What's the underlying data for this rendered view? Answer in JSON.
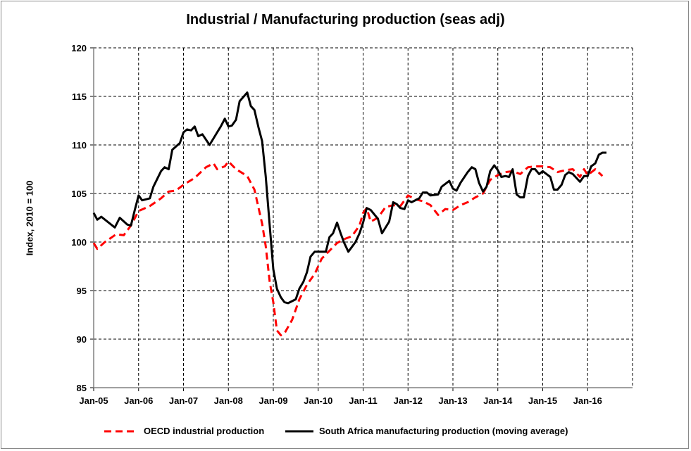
{
  "chart_data": {
    "type": "line",
    "title": "Industrial / Manufacturing production (seas adj)",
    "xlabel": "",
    "ylabel": "Index, 2010 = 100",
    "ylim": [
      85,
      120
    ],
    "xlim": [
      2005.0,
      2017.0
    ],
    "yticks": [
      85,
      90,
      95,
      100,
      105,
      110,
      115,
      120
    ],
    "xtick_labels": [
      "Jan-05",
      "Jan-06",
      "Jan-07",
      "Jan-08",
      "Jan-09",
      "Jan-10",
      "Jan-11",
      "Jan-12",
      "Jan-13",
      "Jan-14",
      "Jan-15",
      "Jan-16"
    ],
    "grid": true,
    "legend_position": "bottom",
    "series": [
      {
        "name": "OECD industrial production",
        "color": "#ff0000",
        "style": "dashed",
        "x": [
          2005.0,
          2005.08,
          2005.25,
          2005.5,
          2005.67,
          2005.83,
          2006.0,
          2006.25,
          2006.5,
          2006.67,
          2006.83,
          2007.0,
          2007.25,
          2007.5,
          2007.67,
          2007.75,
          2007.92,
          2008.0,
          2008.17,
          2008.42,
          2008.58,
          2008.75,
          2008.83,
          2008.92,
          2009.0,
          2009.08,
          2009.17,
          2009.25,
          2009.42,
          2009.58,
          2009.75,
          2009.92,
          2010.08,
          2010.25,
          2010.42,
          2010.58,
          2010.75,
          2010.92,
          2011.0,
          2011.08,
          2011.17,
          2011.33,
          2011.5,
          2011.67,
          2011.83,
          2012.0,
          2012.17,
          2012.33,
          2012.5,
          2012.67,
          2012.83,
          2013.0,
          2013.17,
          2013.33,
          2013.5,
          2013.67,
          2013.83,
          2014.0,
          2014.17,
          2014.33,
          2014.5,
          2014.67,
          2014.83,
          2015.0,
          2015.17,
          2015.33,
          2015.5,
          2015.67,
          2015.83,
          2015.92,
          2016.0,
          2016.17,
          2016.33
        ],
        "values": [
          99.9,
          99.3,
          100.0,
          100.8,
          100.7,
          101.7,
          103.2,
          103.7,
          104.5,
          105.2,
          105.3,
          105.9,
          106.6,
          107.7,
          108.1,
          107.5,
          107.8,
          108.3,
          107.5,
          106.8,
          105.4,
          101.9,
          99.6,
          95.9,
          93.8,
          90.9,
          90.4,
          90.6,
          92.0,
          94.1,
          95.6,
          96.7,
          98.3,
          99.1,
          99.9,
          100.3,
          100.6,
          101.7,
          103.0,
          103.5,
          102.1,
          102.5,
          103.6,
          103.8,
          103.7,
          104.8,
          104.4,
          104.2,
          103.8,
          102.8,
          103.4,
          103.3,
          103.8,
          104.1,
          104.6,
          105.0,
          106.4,
          106.9,
          107.2,
          107.3,
          107.0,
          107.7,
          107.8,
          107.8,
          107.7,
          107.2,
          107.4,
          107.5,
          106.7,
          107.5,
          106.9,
          107.5,
          106.8
        ]
      },
      {
        "name": "South Africa manufacturing production (moving average)",
        "color": "#000000",
        "style": "solid",
        "x": [
          2005.0,
          2005.08,
          2005.17,
          2005.47,
          2005.58,
          2005.75,
          2005.83,
          2005.92,
          2006.0,
          2006.08,
          2006.25,
          2006.33,
          2006.5,
          2006.58,
          2006.67,
          2006.75,
          2006.92,
          2007.0,
          2007.08,
          2007.17,
          2007.25,
          2007.33,
          2007.42,
          2007.58,
          2007.75,
          2007.83,
          2007.92,
          2008.0,
          2008.08,
          2008.17,
          2008.25,
          2008.42,
          2008.5,
          2008.58,
          2008.67,
          2008.75,
          2008.83,
          2008.92,
          2009.0,
          2009.08,
          2009.17,
          2009.25,
          2009.33,
          2009.5,
          2009.58,
          2009.67,
          2009.75,
          2009.83,
          2009.92,
          2010.17,
          2010.25,
          2010.33,
          2010.42,
          2010.5,
          2010.58,
          2010.67,
          2010.83,
          2010.92,
          2011.0,
          2011.08,
          2011.17,
          2011.33,
          2011.42,
          2011.58,
          2011.67,
          2011.75,
          2011.83,
          2011.92,
          2012.0,
          2012.08,
          2012.25,
          2012.33,
          2012.42,
          2012.5,
          2012.67,
          2012.75,
          2012.92,
          2013.0,
          2013.08,
          2013.17,
          2013.33,
          2013.42,
          2013.5,
          2013.58,
          2013.67,
          2013.75,
          2013.83,
          2013.92,
          2014.0,
          2014.08,
          2014.17,
          2014.25,
          2014.33,
          2014.42,
          2014.5,
          2014.58,
          2014.67,
          2014.75,
          2014.83,
          2014.92,
          2015.0,
          2015.17,
          2015.25,
          2015.33,
          2015.42,
          2015.5,
          2015.58,
          2015.67,
          2015.83,
          2015.92,
          2016.0,
          2016.08,
          2016.17,
          2016.25,
          2016.33,
          2016.42
        ],
        "values": [
          103.0,
          102.3,
          102.6,
          101.5,
          102.5,
          101.8,
          101.7,
          103.4,
          104.8,
          104.3,
          104.5,
          105.7,
          107.3,
          107.7,
          107.5,
          109.5,
          110.2,
          111.3,
          111.6,
          111.5,
          111.9,
          110.9,
          111.1,
          110.0,
          111.3,
          111.9,
          112.7,
          111.9,
          112.0,
          112.6,
          114.5,
          115.4,
          114.0,
          113.6,
          111.8,
          110.4,
          106.8,
          101.7,
          97.2,
          95.2,
          94.3,
          93.8,
          93.7,
          94.1,
          95.2,
          95.9,
          96.9,
          98.5,
          99.0,
          99.0,
          100.5,
          100.9,
          102.0,
          100.9,
          99.9,
          99.0,
          100.0,
          100.9,
          102.0,
          103.5,
          103.3,
          102.4,
          100.9,
          102.1,
          104.1,
          103.9,
          103.5,
          103.4,
          104.3,
          104.1,
          104.5,
          105.1,
          105.1,
          104.8,
          104.9,
          105.7,
          106.3,
          105.5,
          105.3,
          106.1,
          107.2,
          107.7,
          107.5,
          106.1,
          105.2,
          105.7,
          107.3,
          107.9,
          107.4,
          106.7,
          106.8,
          106.7,
          107.5,
          104.9,
          104.6,
          104.6,
          106.8,
          107.5,
          107.5,
          107.0,
          107.3,
          106.7,
          105.4,
          105.4,
          105.9,
          106.9,
          107.2,
          107.0,
          106.2,
          106.8,
          106.8,
          107.8,
          108.1,
          109.0,
          109.2,
          109.2
        ]
      }
    ]
  }
}
